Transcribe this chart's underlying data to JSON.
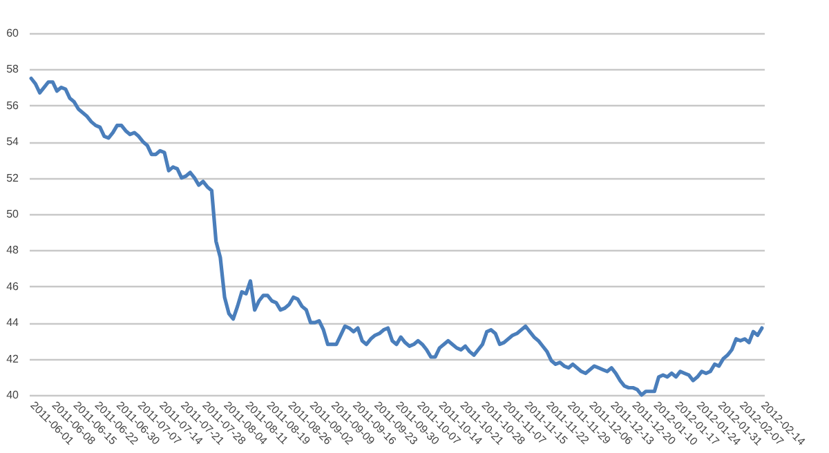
{
  "chart_data": {
    "type": "line",
    "categories": [
      "2011-06-01",
      null,
      null,
      null,
      null,
      "2011-06-08",
      null,
      null,
      null,
      null,
      "2011-06-15",
      null,
      null,
      null,
      null,
      "2011-06-22",
      null,
      null,
      null,
      null,
      "2011-06-30",
      null,
      null,
      null,
      null,
      "2011-07-07",
      null,
      null,
      null,
      null,
      "2011-07-14",
      null,
      null,
      null,
      null,
      "2011-07-21",
      null,
      null,
      null,
      null,
      "2011-07-28",
      null,
      null,
      null,
      null,
      "2011-08-04",
      null,
      null,
      null,
      null,
      "2011-08-11",
      null,
      null,
      null,
      null,
      "2011-08-19",
      null,
      null,
      null,
      null,
      "2011-08-26",
      null,
      null,
      null,
      null,
      "2011-09-02",
      null,
      null,
      null,
      null,
      "2011-09-09",
      null,
      null,
      null,
      null,
      "2011-09-16",
      null,
      null,
      null,
      null,
      "2011-09-23",
      null,
      null,
      null,
      null,
      "2011-09-30",
      null,
      null,
      null,
      null,
      "2011-10-07",
      null,
      null,
      null,
      null,
      "2011-10-14",
      null,
      null,
      null,
      null,
      "2011-10-21",
      null,
      null,
      null,
      null,
      "2011-10-28",
      null,
      null,
      null,
      null,
      "2011-11-07",
      null,
      null,
      null,
      null,
      "2011-11-15",
      null,
      null,
      null,
      null,
      "2011-11-22",
      null,
      null,
      null,
      null,
      "2011-11-29",
      null,
      null,
      null,
      null,
      "2011-12-06",
      null,
      null,
      null,
      null,
      "2011-12-13",
      null,
      null,
      null,
      null,
      "2011-12-20",
      null,
      null,
      null,
      null,
      "2012-01-10",
      null,
      null,
      null,
      null,
      "2012-01-17",
      null,
      null,
      null,
      null,
      "2012-01-24",
      null,
      null,
      null,
      null,
      "2012-01-31",
      null,
      null,
      null,
      null,
      "2012-02-07",
      null,
      null,
      null,
      null,
      "2012-02-14"
    ],
    "series": [
      {
        "color": "#4a7ebb",
        "values": [
          57.5,
          57.2,
          56.7,
          57.0,
          57.3,
          57.3,
          56.8,
          57.0,
          56.9,
          56.4,
          56.2,
          55.8,
          55.6,
          55.4,
          55.1,
          54.9,
          54.8,
          54.3,
          54.2,
          54.5,
          54.9,
          54.9,
          54.6,
          54.4,
          54.5,
          54.3,
          54.0,
          53.8,
          53.3,
          53.3,
          53.5,
          53.4,
          52.4,
          52.6,
          52.5,
          52.0,
          52.1,
          52.3,
          52.0,
          51.6,
          51.8,
          51.5,
          51.3,
          48.5,
          47.6,
          45.4,
          44.5,
          44.2,
          44.9,
          45.7,
          45.6,
          46.3,
          44.7,
          45.2,
          45.5,
          45.5,
          45.2,
          45.1,
          44.7,
          44.8,
          45.0,
          45.4,
          45.3,
          44.9,
          44.7,
          44.0,
          44.0,
          44.1,
          43.6,
          42.8,
          42.8,
          42.8,
          43.3,
          43.8,
          43.7,
          43.5,
          43.7,
          43.0,
          42.8,
          43.1,
          43.3,
          43.4,
          43.6,
          43.7,
          43.0,
          42.8,
          43.2,
          42.9,
          42.7,
          42.8,
          43.0,
          42.8,
          42.5,
          42.1,
          42.1,
          42.6,
          42.8,
          43.0,
          42.8,
          42.6,
          42.5,
          42.7,
          42.4,
          42.2,
          42.5,
          42.8,
          43.5,
          43.6,
          43.4,
          42.8,
          42.9,
          43.1,
          43.3,
          43.4,
          43.6,
          43.8,
          43.5,
          43.2,
          43.0,
          42.7,
          42.4,
          41.9,
          41.7,
          41.8,
          41.6,
          41.5,
          41.7,
          41.5,
          41.3,
          41.2,
          41.4,
          41.6,
          41.5,
          41.4,
          41.3,
          41.5,
          41.2,
          40.8,
          40.5,
          40.4,
          40.4,
          40.3,
          40.0,
          40.2,
          40.2,
          40.2,
          41.0,
          41.1,
          41.0,
          41.2,
          41.0,
          41.3,
          41.2,
          41.1,
          40.8,
          41.0,
          41.3,
          41.2,
          41.3,
          41.7,
          41.6,
          42.0,
          42.2,
          42.5,
          43.1,
          43.0,
          43.1,
          42.9,
          43.5,
          43.3,
          43.7
        ]
      }
    ],
    "ylim": [
      40,
      60
    ],
    "yticks": [
      40,
      42,
      44,
      46,
      48,
      50,
      52,
      54,
      56,
      58,
      60
    ],
    "grid": "y",
    "legend": false
  }
}
